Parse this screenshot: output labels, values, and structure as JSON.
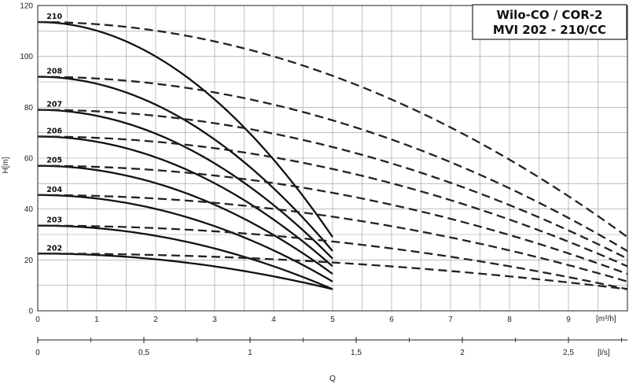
{
  "chart_data": {
    "type": "line",
    "title": [
      "Wilo-CO / COR-2",
      "MVI 202 - 210/CC"
    ],
    "ylabel": "H[m]",
    "xlabel": "Q",
    "x_unit": "[m³/h]",
    "x2_unit": "[l/s]",
    "xlim": [
      0,
      10
    ],
    "ylim": [
      0,
      120
    ],
    "x_ticks": [
      0,
      1,
      2,
      3,
      4,
      5,
      6,
      7,
      8,
      9
    ],
    "y_ticks": [
      0,
      20,
      40,
      60,
      80,
      100,
      120
    ],
    "x2_ticks": [
      0,
      0.5,
      1,
      1.5,
      2,
      2.5
    ],
    "x2_tick_labels": [
      "0",
      "0,5",
      "1",
      "1,5",
      "2",
      "2,5"
    ],
    "grid": true,
    "series": [
      {
        "name": "210",
        "h0": 113.5,
        "single_pump_end": [
          5,
          29
        ],
        "parallel_end": [
          10,
          29
        ],
        "parallel_at_5": 89,
        "single_end_dashed": 37
      },
      {
        "name": "208",
        "h0": 92,
        "single_pump_end": [
          5,
          23.5
        ],
        "parallel_end": [
          10,
          23.5
        ],
        "parallel_at_5": 72,
        "single_end_dashed": 30
      },
      {
        "name": "207",
        "h0": 79,
        "single_pump_end": [
          5,
          20.5
        ],
        "parallel_end": [
          10,
          20.5
        ],
        "parallel_at_5": 62,
        "single_end_dashed": 26
      },
      {
        "name": "206",
        "h0": 68.5,
        "single_pump_end": [
          5,
          17.5
        ],
        "parallel_end": [
          10,
          17.5
        ],
        "parallel_at_5": 53,
        "single_end_dashed": 22
      },
      {
        "name": "205",
        "h0": 57,
        "single_pump_end": [
          5,
          14.5
        ],
        "parallel_end": [
          10,
          14.5
        ],
        "parallel_at_5": 44.5,
        "single_end_dashed": 18.5
      },
      {
        "name": "204",
        "h0": 45.5,
        "single_pump_end": [
          5,
          11.5
        ],
        "parallel_end": [
          10,
          11.5
        ],
        "parallel_at_5": 36,
        "single_end_dashed": 15
      },
      {
        "name": "203",
        "h0": 33.5,
        "single_pump_end": [
          5,
          8.5
        ],
        "parallel_end": [
          10,
          8.5
        ],
        "parallel_at_5": 27,
        "single_end_dashed": 11
      },
      {
        "name": "202",
        "h0": 22.5,
        "single_pump_end": [
          5,
          8.5
        ],
        "parallel_end": [
          10,
          8.5
        ],
        "parallel_at_5": 18.5,
        "single_end_dashed": 11
      }
    ]
  }
}
